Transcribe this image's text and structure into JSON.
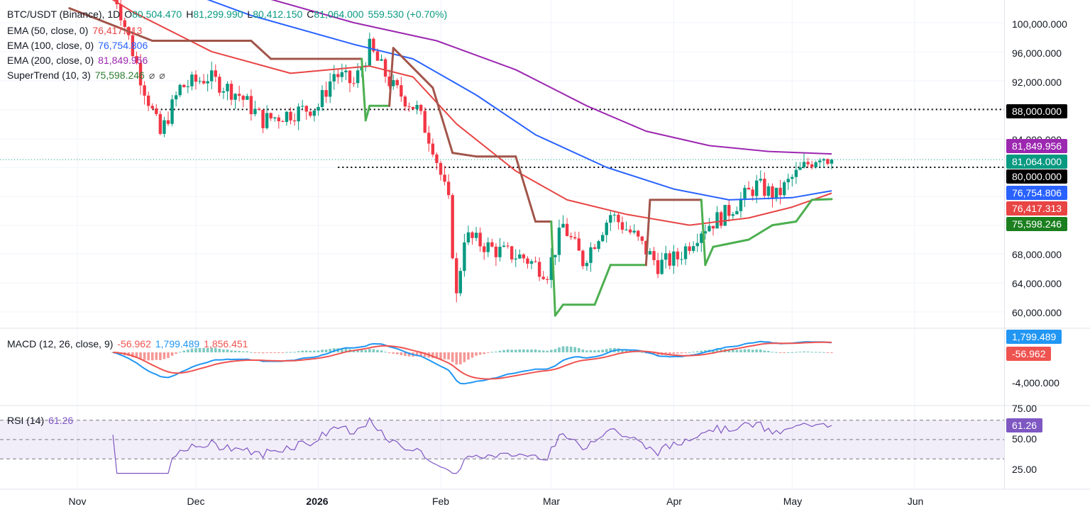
{
  "header": {
    "symbol": "BTC/USDT (Binance), 1D",
    "open_label": "O",
    "open": "80,504.470",
    "high_label": "H",
    "high": "81,299.990",
    "low_label": "L",
    "low": "80,412.150",
    "close_label": "C",
    "close": "81,064.000",
    "change": "559.530 (+0.70%)"
  },
  "indicators": [
    {
      "label": "EMA (50, close, 0)",
      "value": "76,417.313",
      "color": "#e84444"
    },
    {
      "label": "EMA (100, close, 0)",
      "value": "76,754.806",
      "color": "#2962ff"
    },
    {
      "label": "EMA (200, close, 0)",
      "value": "81,849.956",
      "color": "#9c27b0"
    },
    {
      "label": "SuperTrend (10, 3)",
      "value": "75,598.246",
      "color": "#2e7d32"
    }
  ],
  "price_tags": [
    {
      "name": "horizontal-line-88000",
      "text": "88,000.000",
      "value": 88000,
      "bg": "#000000"
    },
    {
      "name": "ema200",
      "text": "81,849.956",
      "value": 81849.956,
      "bg": "#9c27b0"
    },
    {
      "name": "last-price",
      "text": "81,064.000",
      "value": 81064,
      "bg": "#089981"
    },
    {
      "name": "horizontal-line-80000",
      "text": "80,000.000",
      "value": 80000,
      "bg": "#000000"
    },
    {
      "name": "ema100",
      "text": "76,754.806",
      "value": 76754.806,
      "bg": "#2962ff"
    },
    {
      "name": "ema50",
      "text": "76,417.313",
      "value": 76417.313,
      "bg": "#e84444"
    },
    {
      "name": "supertrend",
      "text": "75,598.246",
      "value": 75598.246,
      "bg": "#1b7f1f"
    }
  ],
  "macd": {
    "label": "MACD (12, 26, close, 9)",
    "histogram": "-56.962",
    "macd": "1,799.489",
    "signal": "1,856.451",
    "tags": [
      {
        "text": "1,799.489",
        "bg": "#2196f3"
      },
      {
        "text": "-56.962",
        "bg": "#ef5350"
      }
    ],
    "axis_label": "-4,000.000"
  },
  "rsi": {
    "label": "RSI (14)",
    "value": "61.26",
    "tag_bg": "#7e57c2",
    "levels": [
      "75.00",
      "50.00",
      "25.00"
    ]
  },
  "chart_data": {
    "type": "candlestick",
    "symbol": "BTC/USDT",
    "timeframe": "1D",
    "price_axis_ticks": [
      "100,000.000",
      "96,000.000",
      "92,000.000",
      "84,000.000",
      "68,000.000",
      "64,000.000",
      "60,000.000"
    ],
    "x_labels": [
      {
        "text": "Nov",
        "date": "2025-11-01",
        "bold": false
      },
      {
        "text": "Dec",
        "date": "2025-12-01",
        "bold": false
      },
      {
        "text": "2026",
        "date": "2026-01-01",
        "bold": true
      },
      {
        "text": "Feb",
        "date": "2026-02-01",
        "bold": false
      },
      {
        "text": "Mar",
        "date": "2026-03-01",
        "bold": false
      },
      {
        "text": "Apr",
        "date": "2026-04-01",
        "bold": false
      },
      {
        "text": "May",
        "date": "2026-05-01",
        "bold": false
      },
      {
        "text": "Jun",
        "date": "2026-06-01",
        "bold": false
      }
    ],
    "horizontal_lines": [
      {
        "value": 88000,
        "from": "2025-11-20"
      },
      {
        "value": 80000,
        "from": "2026-01-06"
      }
    ],
    "approx_close_path": [
      {
        "date": "2025-11-10",
        "close": 105000
      },
      {
        "date": "2025-11-17",
        "close": 92500
      },
      {
        "date": "2025-11-22",
        "close": 84500
      },
      {
        "date": "2025-11-27",
        "close": 91000
      },
      {
        "date": "2025-12-04",
        "close": 92500
      },
      {
        "date": "2025-12-12",
        "close": 90000
      },
      {
        "date": "2025-12-18",
        "close": 86500
      },
      {
        "date": "2025-12-25",
        "close": 87500
      },
      {
        "date": "2026-01-01",
        "close": 88500
      },
      {
        "date": "2026-01-05",
        "close": 93000
      },
      {
        "date": "2026-01-10",
        "close": 91500
      },
      {
        "date": "2026-01-14",
        "close": 96500
      },
      {
        "date": "2026-01-20",
        "close": 91000
      },
      {
        "date": "2026-01-26",
        "close": 88000
      },
      {
        "date": "2026-01-30",
        "close": 83000
      },
      {
        "date": "2026-02-03",
        "close": 75000
      },
      {
        "date": "2026-02-05",
        "close": 62000
      },
      {
        "date": "2026-02-07",
        "close": 70500
      },
      {
        "date": "2026-02-15",
        "close": 68500
      },
      {
        "date": "2026-02-22",
        "close": 67500
      },
      {
        "date": "2026-02-28",
        "close": 65500
      },
      {
        "date": "2026-03-04",
        "close": 72000
      },
      {
        "date": "2026-03-09",
        "close": 67000
      },
      {
        "date": "2026-03-16",
        "close": 73500
      },
      {
        "date": "2026-03-22",
        "close": 70500
      },
      {
        "date": "2026-03-28",
        "close": 66500
      },
      {
        "date": "2026-04-02",
        "close": 67500
      },
      {
        "date": "2026-04-08",
        "close": 71500
      },
      {
        "date": "2026-04-14",
        "close": 73500
      },
      {
        "date": "2026-04-18",
        "close": 75500
      },
      {
        "date": "2026-04-22",
        "close": 77500
      },
      {
        "date": "2026-04-27",
        "close": 76000
      },
      {
        "date": "2026-05-01",
        "close": 78500
      },
      {
        "date": "2026-05-05",
        "close": 80500
      },
      {
        "date": "2026-05-08",
        "close": 81800
      },
      {
        "date": "2026-05-11",
        "close": 81064
      }
    ],
    "ema50_path": [
      {
        "date": "2025-10-25",
        "value": 108500
      },
      {
        "date": "2025-11-15",
        "value": 101500
      },
      {
        "date": "2025-12-05",
        "value": 96000
      },
      {
        "date": "2025-12-25",
        "value": 93000
      },
      {
        "date": "2026-01-14",
        "value": 94000
      },
      {
        "date": "2026-01-25",
        "value": 92500
      },
      {
        "date": "2026-02-05",
        "value": 86000
      },
      {
        "date": "2026-02-20",
        "value": 79500
      },
      {
        "date": "2026-03-05",
        "value": 75500
      },
      {
        "date": "2026-03-20",
        "value": 73500
      },
      {
        "date": "2026-04-05",
        "value": 72000
      },
      {
        "date": "2026-04-20",
        "value": 73000
      },
      {
        "date": "2026-05-01",
        "value": 74500
      },
      {
        "date": "2026-05-11",
        "value": 76417.313
      }
    ],
    "ema100_path": [
      {
        "date": "2025-10-25",
        "value": 111000
      },
      {
        "date": "2025-11-20",
        "value": 106000
      },
      {
        "date": "2025-12-15",
        "value": 101000
      },
      {
        "date": "2026-01-10",
        "value": 97000
      },
      {
        "date": "2026-01-25",
        "value": 95000
      },
      {
        "date": "2026-02-10",
        "value": 90000
      },
      {
        "date": "2026-02-25",
        "value": 84500
      },
      {
        "date": "2026-03-15",
        "value": 80000
      },
      {
        "date": "2026-04-01",
        "value": 77000
      },
      {
        "date": "2026-04-15",
        "value": 75500
      },
      {
        "date": "2026-05-01",
        "value": 75800
      },
      {
        "date": "2026-05-11",
        "value": 76754.806
      }
    ],
    "ema200_path": [
      {
        "date": "2025-11-20",
        "value": 108000
      },
      {
        "date": "2025-12-15",
        "value": 104000
      },
      {
        "date": "2026-01-10",
        "value": 100000
      },
      {
        "date": "2026-01-31",
        "value": 97500
      },
      {
        "date": "2026-02-20",
        "value": 93500
      },
      {
        "date": "2026-03-10",
        "value": 88500
      },
      {
        "date": "2026-03-25",
        "value": 85000
      },
      {
        "date": "2026-04-10",
        "value": 83000
      },
      {
        "date": "2026-04-25",
        "value": 82200
      },
      {
        "date": "2026-05-11",
        "value": 81849.956
      }
    ],
    "supertrend_path": [
      {
        "date": "2025-10-30",
        "value": 102000,
        "trend": "down"
      },
      {
        "date": "2025-11-20",
        "value": 97500,
        "trend": "down"
      },
      {
        "date": "2025-12-15",
        "value": 97500,
        "trend": "down"
      },
      {
        "date": "2025-12-20",
        "value": 95000,
        "trend": "down"
      },
      {
        "date": "2026-01-12",
        "value": 95000,
        "trend": "down"
      },
      {
        "date": "2026-01-13",
        "value": 86500,
        "trend": "up"
      },
      {
        "date": "2026-01-14",
        "value": 88500,
        "trend": "up"
      },
      {
        "date": "2026-01-19",
        "value": 88500,
        "trend": "up"
      },
      {
        "date": "2026-01-20",
        "value": 96500,
        "trend": "down"
      },
      {
        "date": "2026-01-30",
        "value": 91000,
        "trend": "down"
      },
      {
        "date": "2026-02-04",
        "value": 82000,
        "trend": "down"
      },
      {
        "date": "2026-02-10",
        "value": 81500,
        "trend": "down"
      },
      {
        "date": "2026-02-20",
        "value": 81500,
        "trend": "down"
      },
      {
        "date": "2026-02-25",
        "value": 72500,
        "trend": "down"
      },
      {
        "date": "2026-03-01",
        "value": 72500,
        "trend": "down"
      },
      {
        "date": "2026-03-02",
        "value": 59500,
        "trend": "up"
      },
      {
        "date": "2026-03-04",
        "value": 61000,
        "trend": "up"
      },
      {
        "date": "2026-03-12",
        "value": 61000,
        "trend": "up"
      },
      {
        "date": "2026-03-16",
        "value": 66500,
        "trend": "up"
      },
      {
        "date": "2026-03-25",
        "value": 66500,
        "trend": "up"
      },
      {
        "date": "2026-03-26",
        "value": 75500,
        "trend": "down"
      },
      {
        "date": "2026-04-08",
        "value": 75500,
        "trend": "down"
      },
      {
        "date": "2026-04-09",
        "value": 66500,
        "trend": "up"
      },
      {
        "date": "2026-04-11",
        "value": 69000,
        "trend": "up"
      },
      {
        "date": "2026-04-20",
        "value": 70000,
        "trend": "up"
      },
      {
        "date": "2026-04-26",
        "value": 72000,
        "trend": "up"
      },
      {
        "date": "2026-05-02",
        "value": 72500,
        "trend": "up"
      },
      {
        "date": "2026-05-06",
        "value": 75500,
        "trend": "up"
      },
      {
        "date": "2026-05-11",
        "value": 75598.246,
        "trend": "up"
      }
    ]
  }
}
